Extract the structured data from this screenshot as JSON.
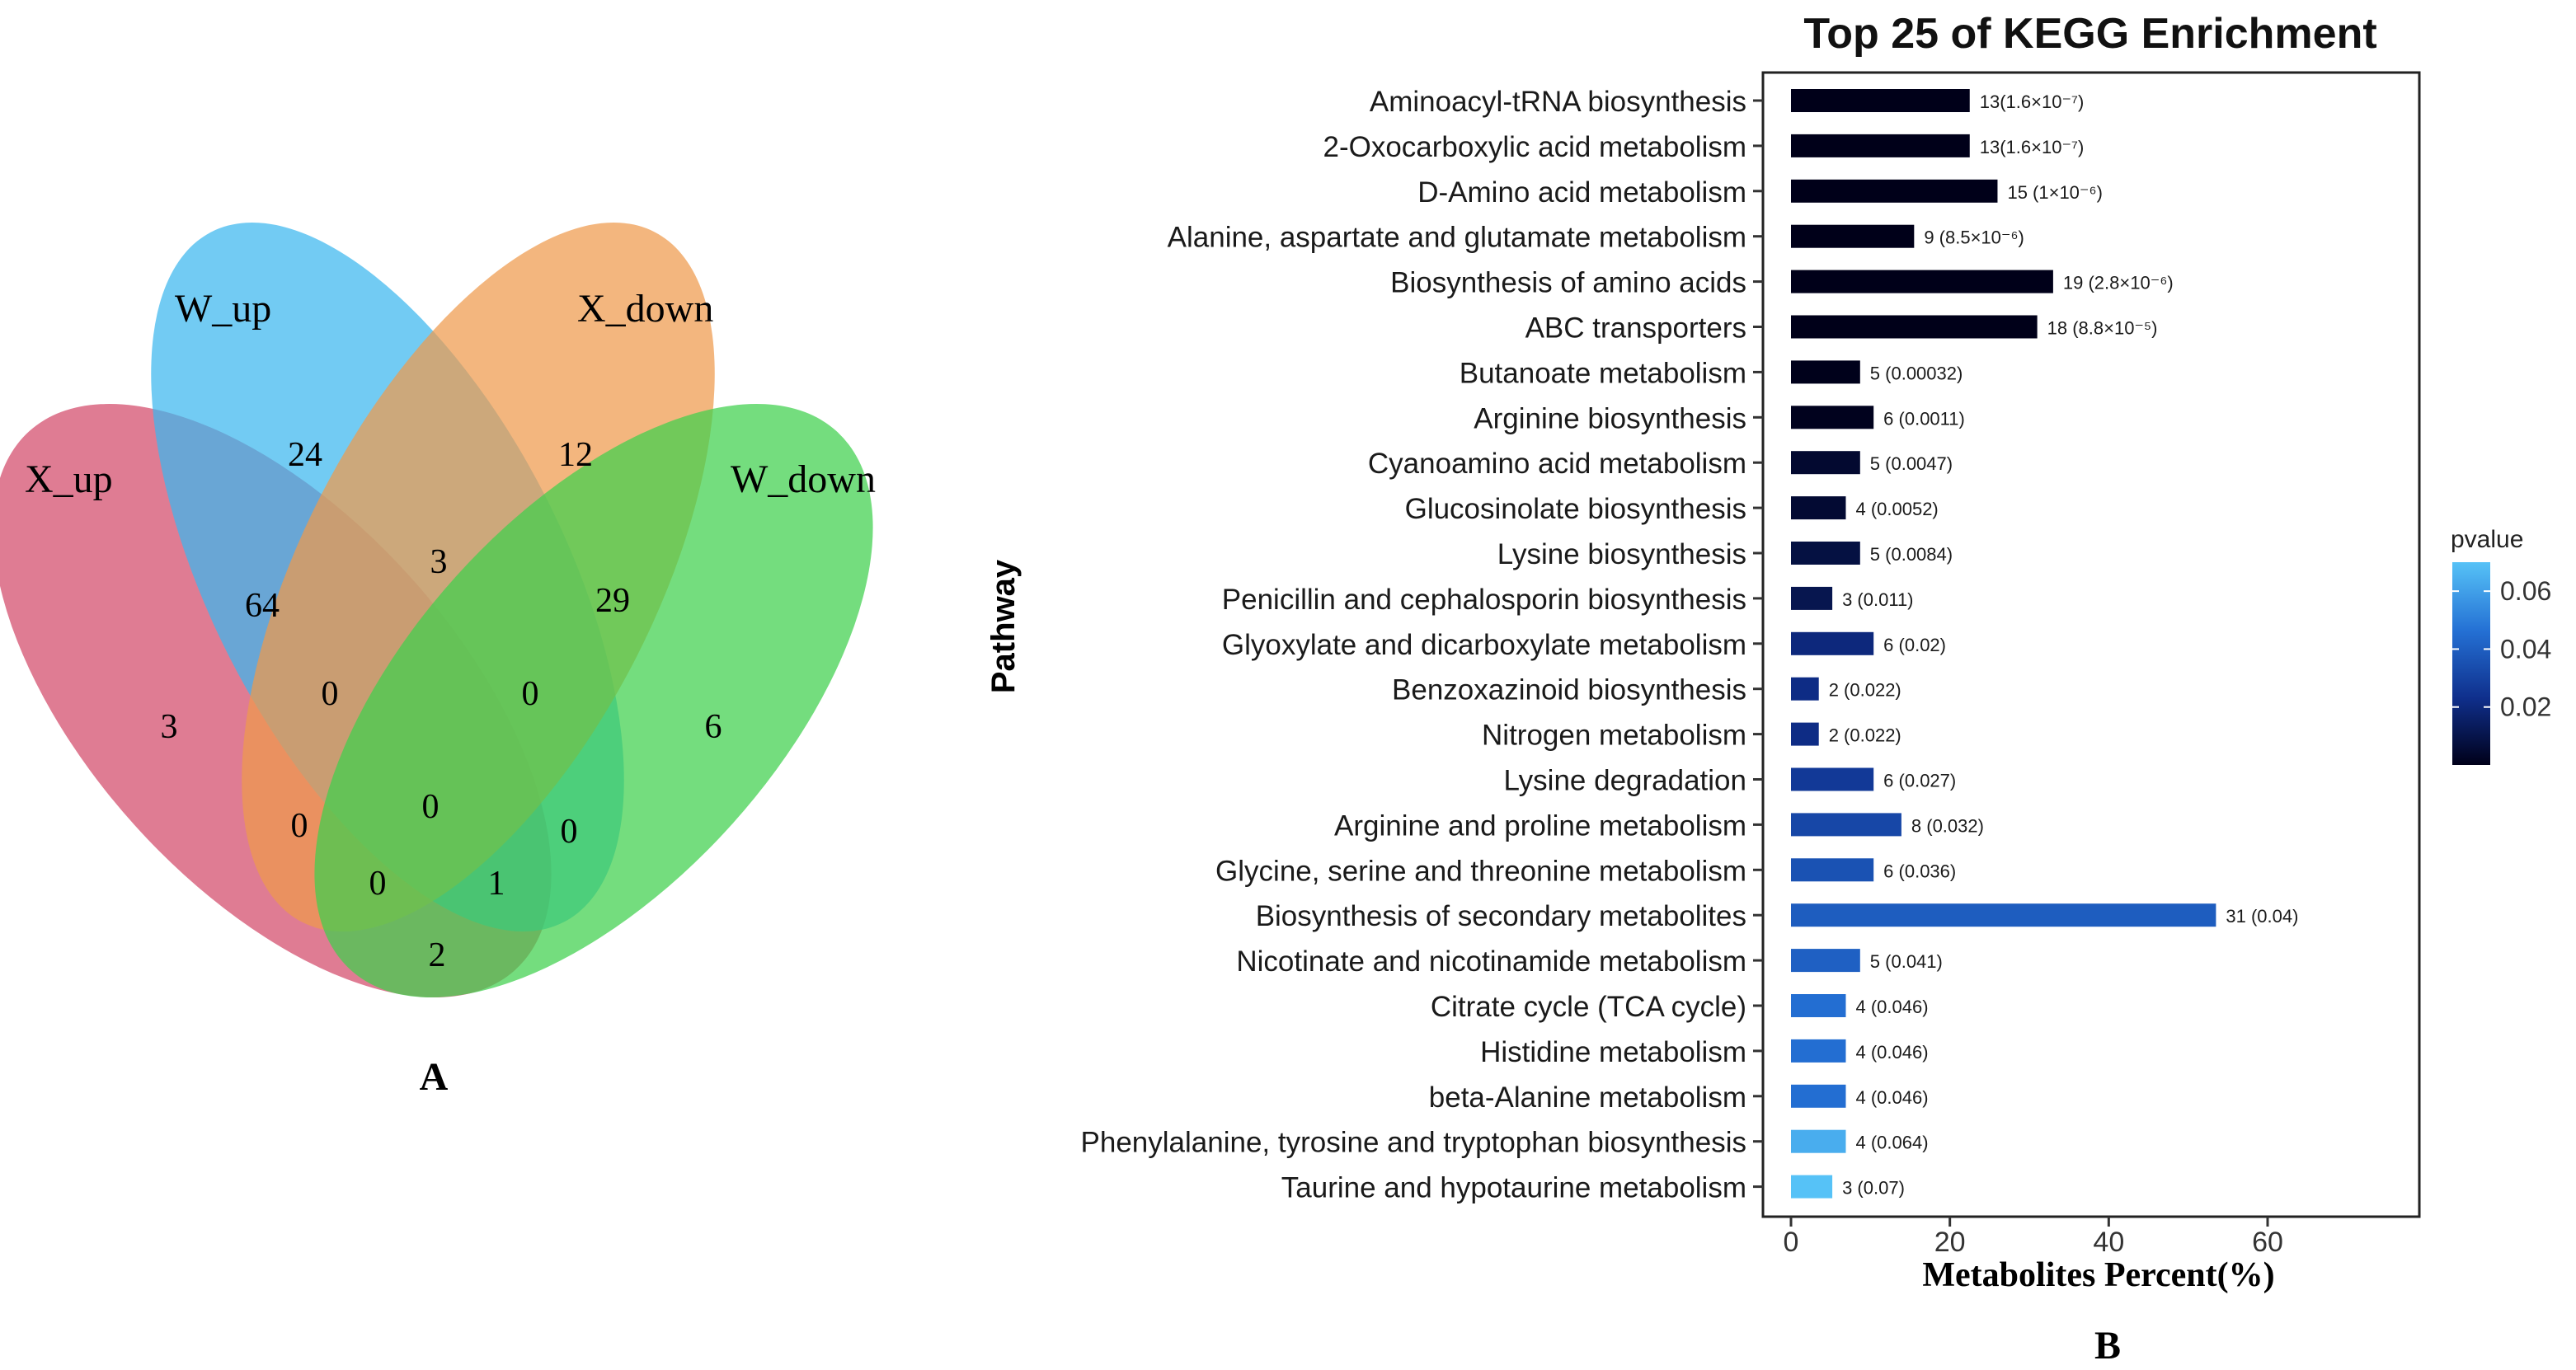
{
  "venn": {
    "panel_label": "A",
    "sets": [
      {
        "name": "X_up",
        "color": "#d24a6a"
      },
      {
        "name": "W_up",
        "color": "#3cb7ef"
      },
      {
        "name": "X_down",
        "color": "#ef9a4c"
      },
      {
        "name": "W_down",
        "color": "#3fd04c"
      }
    ],
    "regions": [
      {
        "sets": [
          "X_up"
        ],
        "count": 3
      },
      {
        "sets": [
          "W_up"
        ],
        "count": 24
      },
      {
        "sets": [
          "X_down"
        ],
        "count": 12
      },
      {
        "sets": [
          "W_down"
        ],
        "count": 6
      },
      {
        "sets": [
          "X_up",
          "W_up"
        ],
        "count": 64
      },
      {
        "sets": [
          "W_up",
          "X_down"
        ],
        "count": 3
      },
      {
        "sets": [
          "X_down",
          "W_down"
        ],
        "count": 29
      },
      {
        "sets": [
          "X_up",
          "W_up",
          "X_down"
        ],
        "count": 0
      },
      {
        "sets": [
          "W_up",
          "X_down",
          "W_down"
        ],
        "count": 0
      },
      {
        "sets": [
          "X_up",
          "X_down"
        ],
        "count": 0
      },
      {
        "sets": [
          "X_up",
          "W_up",
          "X_down",
          "W_down"
        ],
        "count": 0
      },
      {
        "sets": [
          "W_up",
          "W_down"
        ],
        "count": 0
      },
      {
        "sets": [
          "X_up",
          "X_down",
          "W_down"
        ],
        "count": 0
      },
      {
        "sets": [
          "X_up",
          "W_up",
          "W_down"
        ],
        "count": 1
      },
      {
        "sets": [
          "X_up",
          "W_down"
        ],
        "count": 2
      }
    ]
  },
  "chart_data": {
    "type": "bar",
    "orientation": "horizontal",
    "title": "Top 25 of KEGG Enrichment",
    "xlabel": "Metabolites Percent(%)",
    "ylabel": "Pathway",
    "panel_label": "B",
    "xlim": [
      -3,
      80
    ],
    "xticks": [
      0,
      20,
      40,
      60
    ],
    "legend": {
      "title": "pvalue",
      "ticks": [
        0.02,
        0.04,
        0.06
      ],
      "range": [
        0.0,
        0.07
      ],
      "position": "right",
      "colors": [
        "#000019",
        "#0f2f8c",
        "#2470d4",
        "#56c2f7"
      ]
    },
    "categories": [
      "Aminoacyl-tRNA biosynthesis",
      "2-Oxocarboxylic acid metabolism",
      "D-Amino acid metabolism",
      "Alanine, aspartate and glutamate metabolism",
      "Biosynthesis of amino acids",
      "ABC transporters",
      "Butanoate metabolism",
      "Arginine biosynthesis",
      "Cyanoamino acid metabolism",
      "Glucosinolate biosynthesis",
      "Lysine biosynthesis",
      "Penicillin and cephalosporin biosynthesis",
      "Glyoxylate and dicarboxylate metabolism",
      "Benzoxazinoid biosynthesis",
      "Nitrogen metabolism",
      "Lysine degradation",
      "Arginine and proline metabolism",
      "Glycine, serine and threonine metabolism",
      "Biosynthesis of secondary metabolites",
      "Nicotinate and nicotinamide metabolism",
      "Citrate cycle (TCA cycle)",
      "Histidine metabolism",
      "beta-Alanine metabolism",
      "Phenylalanine, tyrosine and tryptophan biosynthesis",
      "Taurine and hypotaurine metabolism"
    ],
    "values": [
      22.5,
      22.5,
      26,
      15.5,
      33,
      31,
      8.7,
      10.4,
      8.7,
      6.9,
      8.7,
      5.2,
      10.4,
      3.5,
      3.5,
      10.4,
      13.9,
      10.4,
      53.5,
      8.7,
      6.9,
      6.9,
      6.9,
      6.9,
      5.2
    ],
    "pvalues": [
      1.6e-07,
      1.6e-07,
      1e-06,
      8.5e-06,
      2.8e-06,
      8.8e-05,
      0.00032,
      0.0011,
      0.0047,
      0.0052,
      0.0084,
      0.011,
      0.02,
      0.022,
      0.022,
      0.027,
      0.032,
      0.036,
      0.04,
      0.041,
      0.046,
      0.046,
      0.046,
      0.064,
      0.07
    ],
    "labels": [
      "13(1.6×10⁻⁷)",
      "13(1.6×10⁻⁷)",
      "15 (1×10⁻⁶)",
      "9 (8.5×10⁻⁶)",
      "19 (2.8×10⁻⁶)",
      "18 (8.8×10⁻⁵)",
      "5 (0.00032)",
      "6 (0.0011)",
      "5 (0.0047)",
      "4 (0.0052)",
      "5 (0.0084)",
      "3 (0.011)",
      "6 (0.02)",
      "2 (0.022)",
      "2 (0.022)",
      "6 (0.027)",
      "8 (0.032)",
      "6 (0.036)",
      "31 (0.04)",
      "5 (0.041)",
      "4 (0.046)",
      "4 (0.046)",
      "4 (0.046)",
      "4 (0.064)",
      "3 (0.07)"
    ]
  }
}
